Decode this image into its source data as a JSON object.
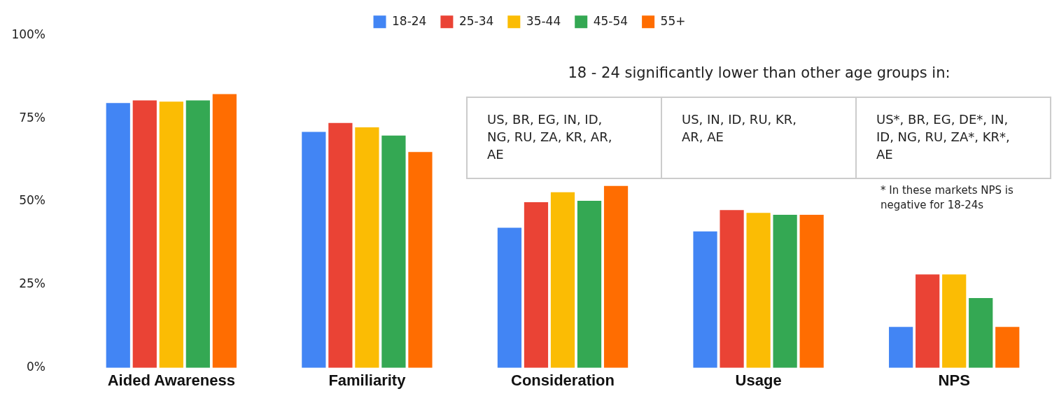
{
  "chart_data": {
    "type": "bar",
    "categories": [
      "Aided Awareness",
      "Familiarity",
      "Consideration",
      "Usage",
      "NPS"
    ],
    "series": [
      {
        "name": "18-24",
        "color": "#4285f4",
        "values": [
          79.6,
          70.9,
          42.1,
          41,
          12.3
        ]
      },
      {
        "name": "25-34",
        "color": "#ea4335",
        "values": [
          80.4,
          73.6,
          49.8,
          47.4,
          28.1
        ]
      },
      {
        "name": "35-44",
        "color": "#fbbc04",
        "values": [
          80,
          72.3,
          52.8,
          46.6,
          28.1
        ]
      },
      {
        "name": "45-54",
        "color": "#34a853",
        "values": [
          80.4,
          69.8,
          50.2,
          46,
          21
        ]
      },
      {
        "name": "55+",
        "color": "#ff6d01",
        "values": [
          82.3,
          64.9,
          54.7,
          46,
          12.3
        ]
      }
    ],
    "ylim": [
      0,
      100
    ],
    "yticks": [
      {
        "value": 0,
        "label": "0%"
      },
      {
        "value": 25,
        "label": "25%"
      },
      {
        "value": 50,
        "label": "50%"
      },
      {
        "value": 75,
        "label": "75%"
      },
      {
        "value": 100,
        "label": "100%"
      }
    ],
    "grid": false,
    "legend": "top",
    "annotations": [
      "18 - 24 significantly lower than other age groups in:",
      "US, BR, EG, IN, ID, NG, RU, ZA, KR, AR, AE",
      "US, IN, ID, RU, KR, AR, AE",
      "US*, BR, EG, DE*, IN, ID, NG, RU, ZA*, KR*, AE",
      "* In these markets NPS is negative for 18-24s"
    ]
  }
}
